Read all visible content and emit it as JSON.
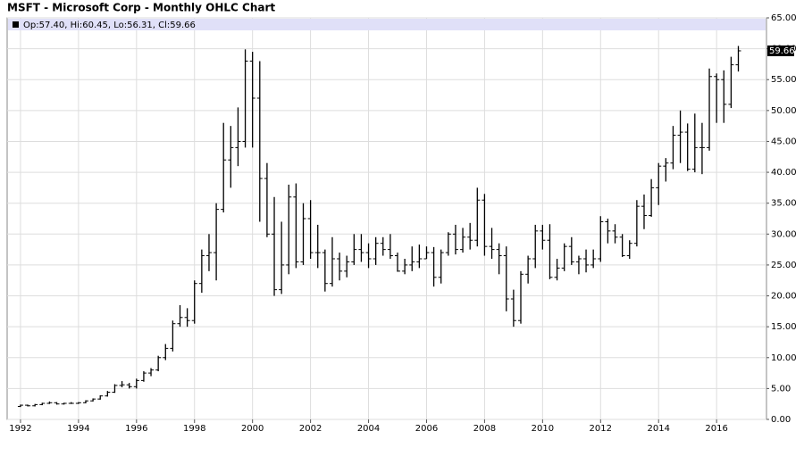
{
  "chart_data": {
    "type": "ohlc",
    "title": "MSFT - Microsoft Corp - Monthly OHLC Chart",
    "last_bar_label": "Op:57.40, Hi:60.45, Lo:56.31, Cl:59.66",
    "last_close_label": "59.66",
    "color": "#000000",
    "grid": true,
    "xlim": [
      1991.54,
      2017.72
    ],
    "xticks": [
      1992,
      1994,
      1996,
      1998,
      2000,
      2002,
      2004,
      2006,
      2008,
      2010,
      2012,
      2014,
      2016
    ],
    "ylim": [
      0,
      65
    ],
    "yticks": [
      {
        "value": 0,
        "label": "0.00"
      },
      {
        "value": 5,
        "label": "5.00"
      },
      {
        "value": 10,
        "label": "10.00"
      },
      {
        "value": 15,
        "label": "15.00"
      },
      {
        "value": 20,
        "label": "20.00"
      },
      {
        "value": 25,
        "label": "25.00"
      },
      {
        "value": 30,
        "label": "30.00"
      },
      {
        "value": 35,
        "label": "35.00"
      },
      {
        "value": 40,
        "label": "40.00"
      },
      {
        "value": 45,
        "label": "45.00"
      },
      {
        "value": 50,
        "label": "50.00"
      },
      {
        "value": 55,
        "label": "55.00"
      },
      {
        "value": 60,
        "label": "60.00"
      },
      {
        "value": 65,
        "label": "65.00"
      }
    ],
    "x": [
      1992,
      1992.25,
      1992.5,
      1992.75,
      1993,
      1993.25,
      1993.5,
      1993.75,
      1994,
      1994.25,
      1994.5,
      1994.75,
      1995,
      1995.25,
      1995.5,
      1995.75,
      1996,
      1996.25,
      1996.5,
      1996.75,
      1997,
      1997.25,
      1997.5,
      1997.75,
      1998,
      1998.25,
      1998.5,
      1998.75,
      1999,
      1999.25,
      1999.5,
      1999.75,
      2000,
      2000.25,
      2000.5,
      2000.75,
      2001,
      2001.25,
      2001.5,
      2001.75,
      2002,
      2002.25,
      2002.5,
      2002.75,
      2003,
      2003.25,
      2003.5,
      2003.75,
      2004,
      2004.25,
      2004.5,
      2004.75,
      2005,
      2005.25,
      2005.5,
      2005.75,
      2006,
      2006.25,
      2006.5,
      2006.75,
      2007,
      2007.25,
      2007.5,
      2007.75,
      2008,
      2008.25,
      2008.5,
      2008.75,
      2009,
      2009.25,
      2009.5,
      2009.75,
      2010,
      2010.25,
      2010.5,
      2010.75,
      2011,
      2011.25,
      2011.5,
      2011.75,
      2012,
      2012.25,
      2012.5,
      2012.75,
      2013,
      2013.25,
      2013.5,
      2013.75,
      2014,
      2014.25,
      2014.5,
      2014.75,
      2015,
      2015.25,
      2015.5,
      2015.75,
      2016,
      2016.25,
      2016.5,
      2016.75
    ],
    "open": [
      2.1,
      2.3,
      2.2,
      2.4,
      2.6,
      2.7,
      2.5,
      2.6,
      2.6,
      2.7,
      3.0,
      3.3,
      3.8,
      4.4,
      5.5,
      5.6,
      5.3,
      6.3,
      7.5,
      8.0,
      10.0,
      11.5,
      15.5,
      16.5,
      16.0,
      22.0,
      26.5,
      27.0,
      34.0,
      42.0,
      44.0,
      45.0,
      58.0,
      52.0,
      39.0,
      30.0,
      21.0,
      25.0,
      36.0,
      25.5,
      32.5,
      27.0,
      27.0,
      22.0,
      26.0,
      24.0,
      25.5,
      27.5,
      27.0,
      26.0,
      28.5,
      27.5,
      26.5,
      24.0,
      25.0,
      25.5,
      26.0,
      27.0,
      23.0,
      27.0,
      30.0,
      27.5,
      29.5,
      29.0,
      35.5,
      28.0,
      27.5,
      26.5,
      19.5,
      16.0,
      23.5,
      26.0,
      30.5,
      29.0,
      23.0,
      24.5,
      28.0,
      25.5,
      26.0,
      25.0,
      26.0,
      32.0,
      30.5,
      29.5,
      26.5,
      28.5,
      34.5,
      33.0,
      37.5,
      41.0,
      41.5,
      46.0,
      46.5,
      40.5,
      44.0,
      44.0,
      55.5,
      55.0,
      51.0,
      57.4
    ],
    "high": [
      2.4,
      2.4,
      2.5,
      2.7,
      2.9,
      2.8,
      2.7,
      2.8,
      2.8,
      3.1,
      3.4,
      3.9,
      4.6,
      5.7,
      6.2,
      5.9,
      6.6,
      7.8,
      8.3,
      10.3,
      12.2,
      16.0,
      18.5,
      18.0,
      22.5,
      27.5,
      30.0,
      35.0,
      48.0,
      47.5,
      50.5,
      59.9,
      59.5,
      58.0,
      41.5,
      36.0,
      32.0,
      38.0,
      38.2,
      35.0,
      35.5,
      31.5,
      27.5,
      29.5,
      27.0,
      26.5,
      30.0,
      30.0,
      28.5,
      29.5,
      29.5,
      30.0,
      27.0,
      26.0,
      28.0,
      28.3,
      28.0,
      27.9,
      27.5,
      30.3,
      31.5,
      31.0,
      31.8,
      37.5,
      36.5,
      31.0,
      28.5,
      28.0,
      21.0,
      24.0,
      26.5,
      31.5,
      31.5,
      31.6,
      26.0,
      28.5,
      29.5,
      26.5,
      27.5,
      27.5,
      32.9,
      32.5,
      31.6,
      30.0,
      29.0,
      35.5,
      36.4,
      38.9,
      41.5,
      42.3,
      47.5,
      50.0,
      47.9,
      49.5,
      48.0,
      56.8,
      56.0,
      56.5,
      58.7,
      60.45
    ],
    "low": [
      2.0,
      2.1,
      2.1,
      2.3,
      2.5,
      2.4,
      2.4,
      2.5,
      2.5,
      2.6,
      2.9,
      3.2,
      3.7,
      4.3,
      5.2,
      5.0,
      5.0,
      6.1,
      7.0,
      7.8,
      9.6,
      11.0,
      15.0,
      15.0,
      15.5,
      20.5,
      24.0,
      22.5,
      33.5,
      37.5,
      41.0,
      44.0,
      44.0,
      32.0,
      29.5,
      20.0,
      20.3,
      23.5,
      24.5,
      25.0,
      26.0,
      24.5,
      20.7,
      21.5,
      22.5,
      23.0,
      25.0,
      25.5,
      24.5,
      25.0,
      26.5,
      26.0,
      23.9,
      23.5,
      24.0,
      24.5,
      26.0,
      21.5,
      22.0,
      26.5,
      26.7,
      27.0,
      27.5,
      28.0,
      26.5,
      26.0,
      23.5,
      17.5,
      15.0,
      15.5,
      22.0,
      24.5,
      27.5,
      22.7,
      22.5,
      24.0,
      25.0,
      23.5,
      23.8,
      24.5,
      25.5,
      28.5,
      28.5,
      26.3,
      26.0,
      28.0,
      30.8,
      32.8,
      34.7,
      38.5,
      40.5,
      41.5,
      40.2,
      40.0,
      39.7,
      43.5,
      48.0,
      48.0,
      50.4,
      56.31
    ],
    "close": [
      2.3,
      2.2,
      2.4,
      2.6,
      2.7,
      2.5,
      2.6,
      2.6,
      2.7,
      3.0,
      3.3,
      3.8,
      4.4,
      5.5,
      5.6,
      5.3,
      6.3,
      7.5,
      8.0,
      10.0,
      11.5,
      15.5,
      16.5,
      16.0,
      22.0,
      26.5,
      27.0,
      34.0,
      42.0,
      44.0,
      45.0,
      58.0,
      52.0,
      39.0,
      30.0,
      21.0,
      25.0,
      36.0,
      25.5,
      32.5,
      27.0,
      27.0,
      22.0,
      26.0,
      24.0,
      25.5,
      27.5,
      27.0,
      26.0,
      28.5,
      27.5,
      26.5,
      24.0,
      25.0,
      25.5,
      26.0,
      27.0,
      23.0,
      27.0,
      30.0,
      27.5,
      29.5,
      29.0,
      35.5,
      28.0,
      27.5,
      26.5,
      19.5,
      16.0,
      23.5,
      26.0,
      30.5,
      29.0,
      23.0,
      24.5,
      28.0,
      25.5,
      26.0,
      25.0,
      26.0,
      32.0,
      30.5,
      29.5,
      26.5,
      28.5,
      34.5,
      33.0,
      37.5,
      41.0,
      41.5,
      46.0,
      46.5,
      40.5,
      44.0,
      44.0,
      55.5,
      55.0,
      51.0,
      57.4,
      59.66
    ]
  }
}
